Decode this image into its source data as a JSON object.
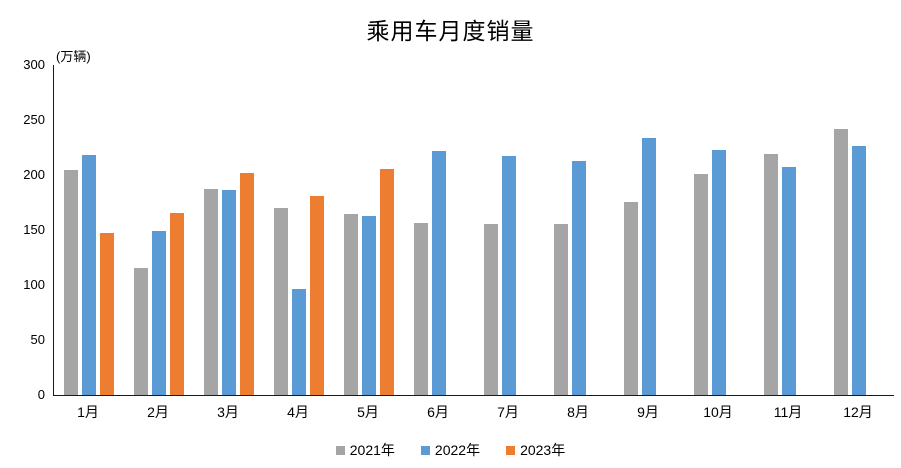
{
  "chart_data": {
    "type": "bar",
    "title": "乘用车月度销量",
    "ylabel": "(万辆)",
    "xlabel": "",
    "categories": [
      "1月",
      "2月",
      "3月",
      "4月",
      "5月",
      "6月",
      "7月",
      "8月",
      "9月",
      "10月",
      "11月",
      "12月"
    ],
    "series": [
      {
        "name": "2021年",
        "color": "#A5A5A5",
        "values": [
          204.5,
          115.5,
          187.4,
          170.4,
          164.6,
          156.8,
          155.1,
          155.2,
          175.1,
          200.7,
          219.2,
          242.2
        ]
      },
      {
        "name": "2022年",
        "color": "#5B9BD5",
        "values": [
          218.6,
          148.7,
          186.4,
          96.5,
          162.3,
          222.2,
          217.4,
          212.5,
          233.2,
          223.1,
          207.5,
          226.3
        ]
      },
      {
        "name": "2023年",
        "color": "#ED7D31",
        "values": [
          146.9,
          165.3,
          201.7,
          181.1,
          205.1,
          null,
          null,
          null,
          null,
          null,
          null,
          null
        ]
      }
    ],
    "ylim": [
      0,
      300
    ],
    "yticks": [
      0,
      50,
      100,
      150,
      200,
      250,
      300
    ],
    "grid": false,
    "legend_position": "bottom",
    "axis_color": "#1a1a1a",
    "background_color": "#ffffff"
  }
}
